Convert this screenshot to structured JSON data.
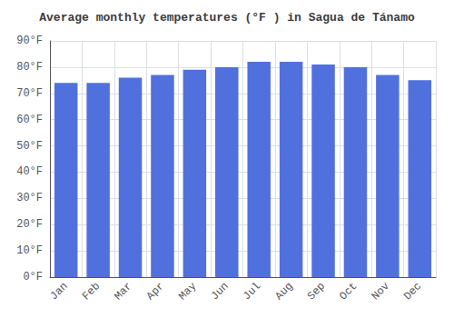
{
  "chart_data": {
    "type": "bar",
    "title": "Average monthly temperatures (°F ) in Sagua de Tánamo",
    "categories": [
      "Jan",
      "Feb",
      "Mar",
      "Apr",
      "May",
      "Jun",
      "Jul",
      "Aug",
      "Sep",
      "Oct",
      "Nov",
      "Dec"
    ],
    "values": [
      74,
      74,
      76,
      77,
      79,
      80,
      82,
      82,
      81,
      80,
      77,
      75
    ],
    "ylim": [
      0,
      90
    ],
    "yticks": [
      {
        "value": 0,
        "label": "0°F"
      },
      {
        "value": 10,
        "label": "10°F"
      },
      {
        "value": 20,
        "label": "20°F"
      },
      {
        "value": 30,
        "label": "30°F"
      },
      {
        "value": 40,
        "label": "40°F"
      },
      {
        "value": 50,
        "label": "50°F"
      },
      {
        "value": 60,
        "label": "60°F"
      },
      {
        "value": 70,
        "label": "70°F"
      },
      {
        "value": 80,
        "label": "80°F"
      },
      {
        "value": 90,
        "label": "90°F"
      }
    ],
    "grid": true
  }
}
